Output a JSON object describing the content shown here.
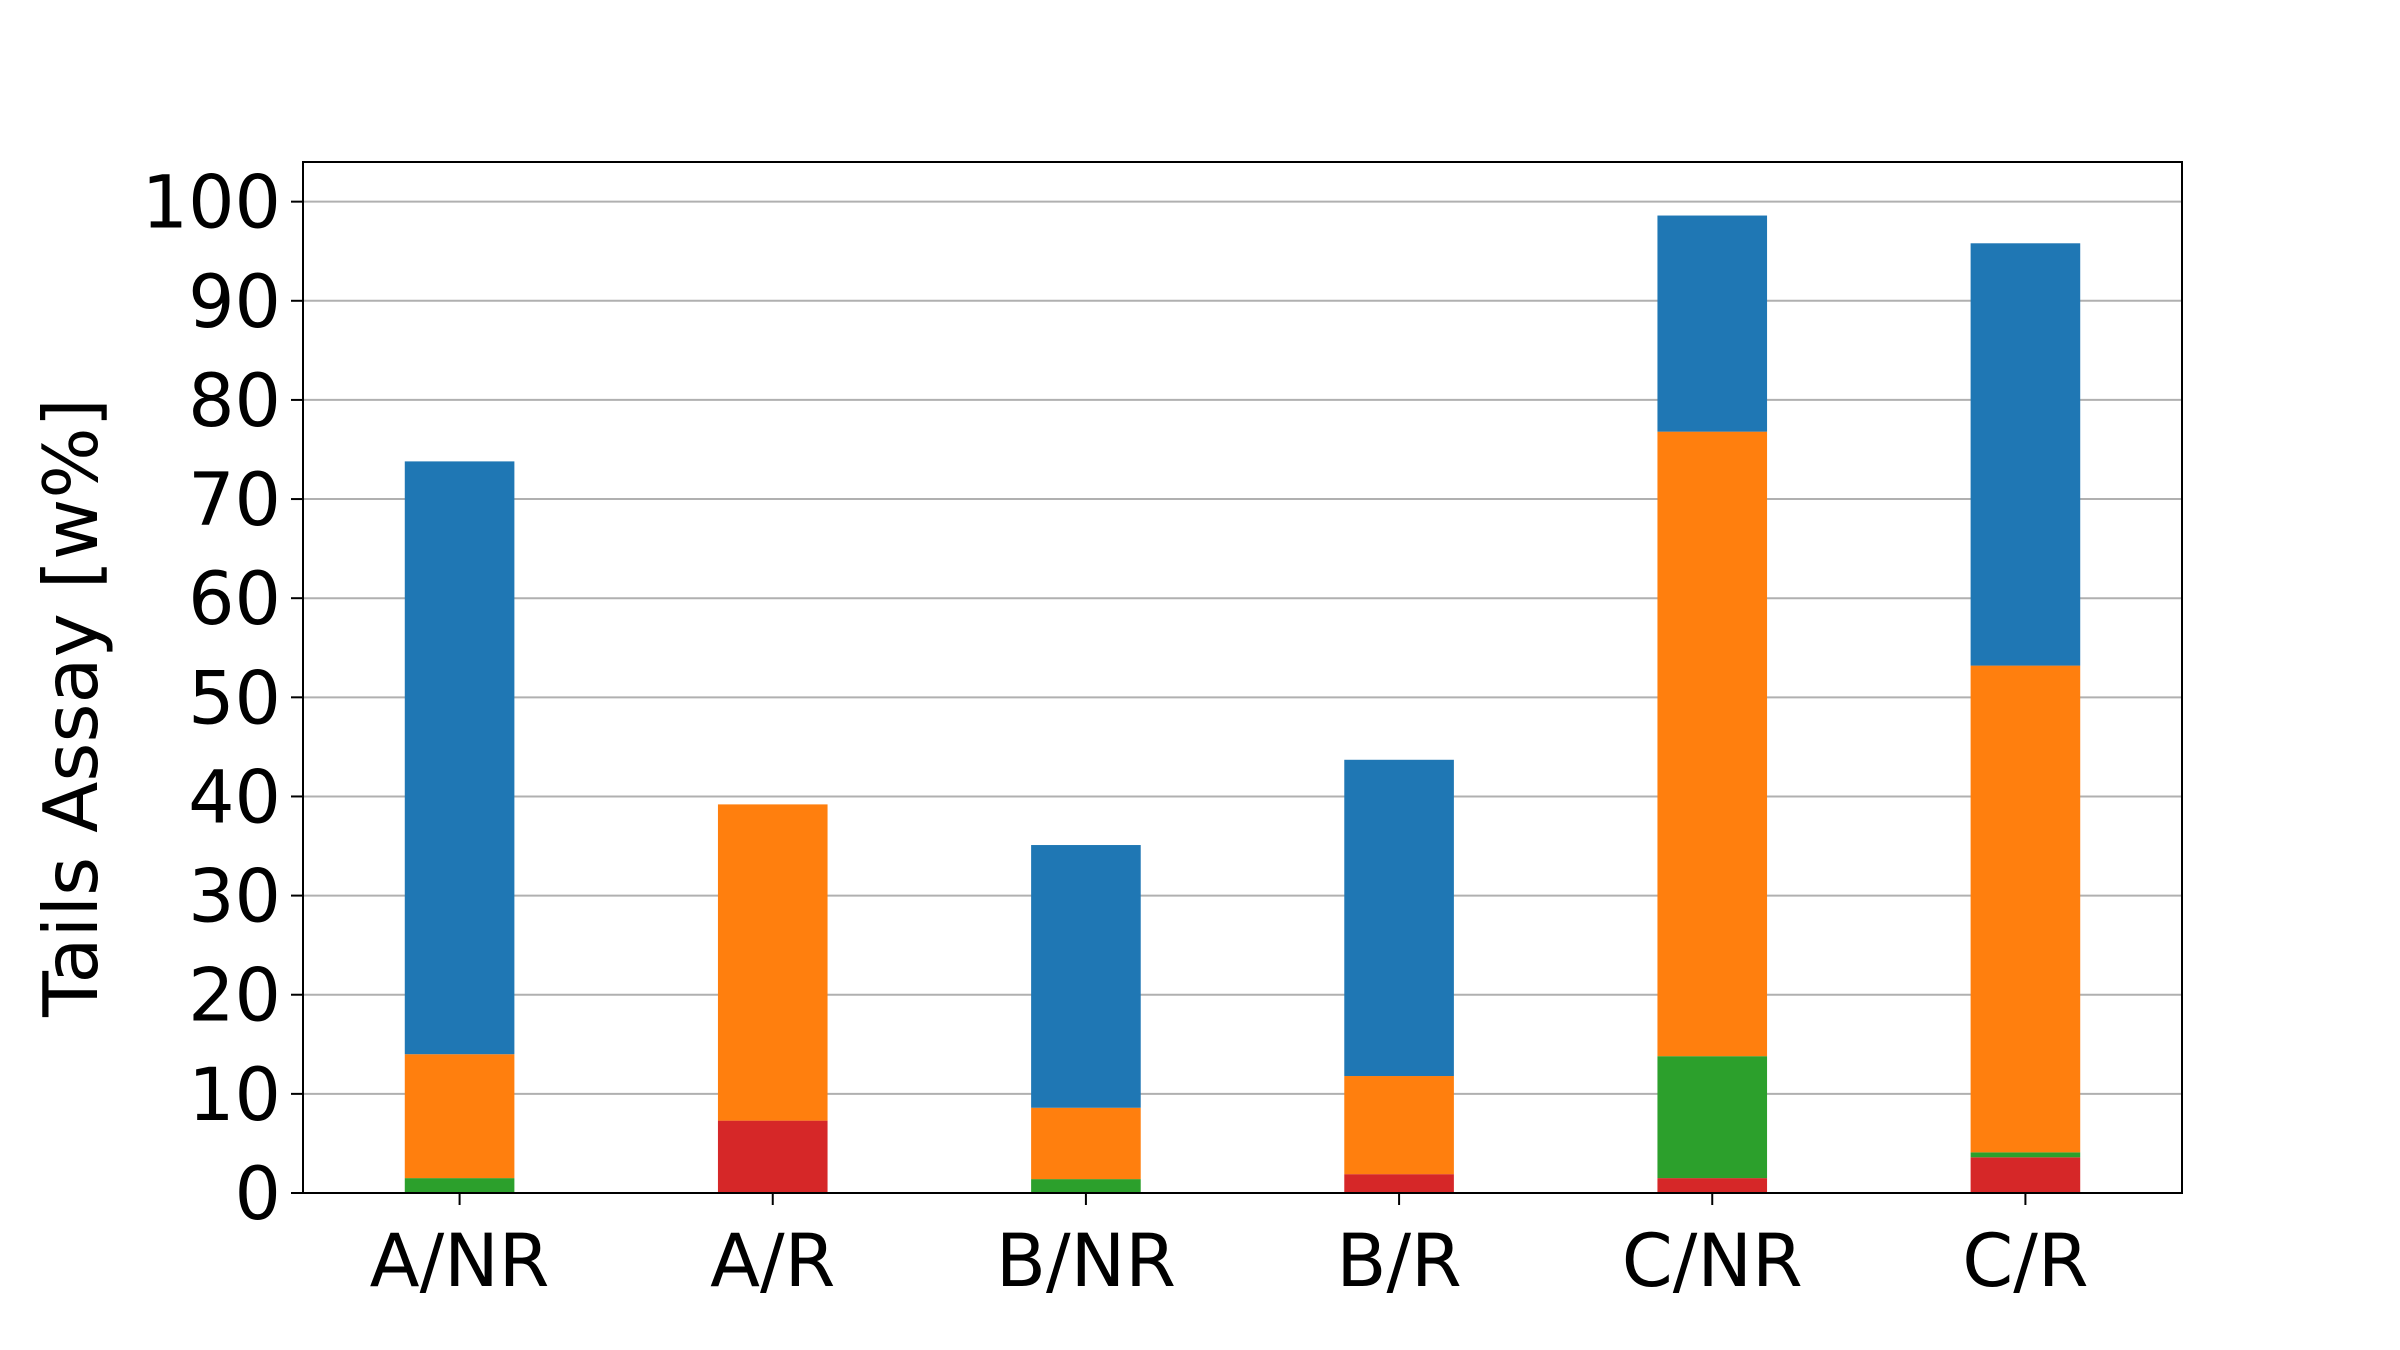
{
  "chart_data": {
    "type": "bar",
    "stacked": true,
    "title": "",
    "xlabel": "",
    "ylabel": "Tails Assay [w%]",
    "ylim": [
      0,
      104
    ],
    "yticks": [
      0,
      10,
      20,
      30,
      40,
      50,
      60,
      70,
      80,
      90,
      100
    ],
    "grid": "horizontal",
    "legend": "none",
    "categories": [
      "A/NR",
      "A/R",
      "B/NR",
      "B/R",
      "C/NR",
      "C/R"
    ],
    "series": [
      {
        "color": "#d62728",
        "values": [
          0,
          7.3,
          0,
          1.9,
          1.5,
          3.6
        ]
      },
      {
        "color": "#2ca02c",
        "values": [
          1.5,
          0,
          1.4,
          0,
          12.3,
          0.5
        ]
      },
      {
        "color": "#ff7f0e",
        "values": [
          12.5,
          31.9,
          7.2,
          9.9,
          63.0,
          49.1
        ]
      },
      {
        "color": "#1f77b4",
        "values": [
          59.8,
          0,
          26.5,
          31.9,
          21.8,
          42.6
        ]
      }
    ]
  }
}
